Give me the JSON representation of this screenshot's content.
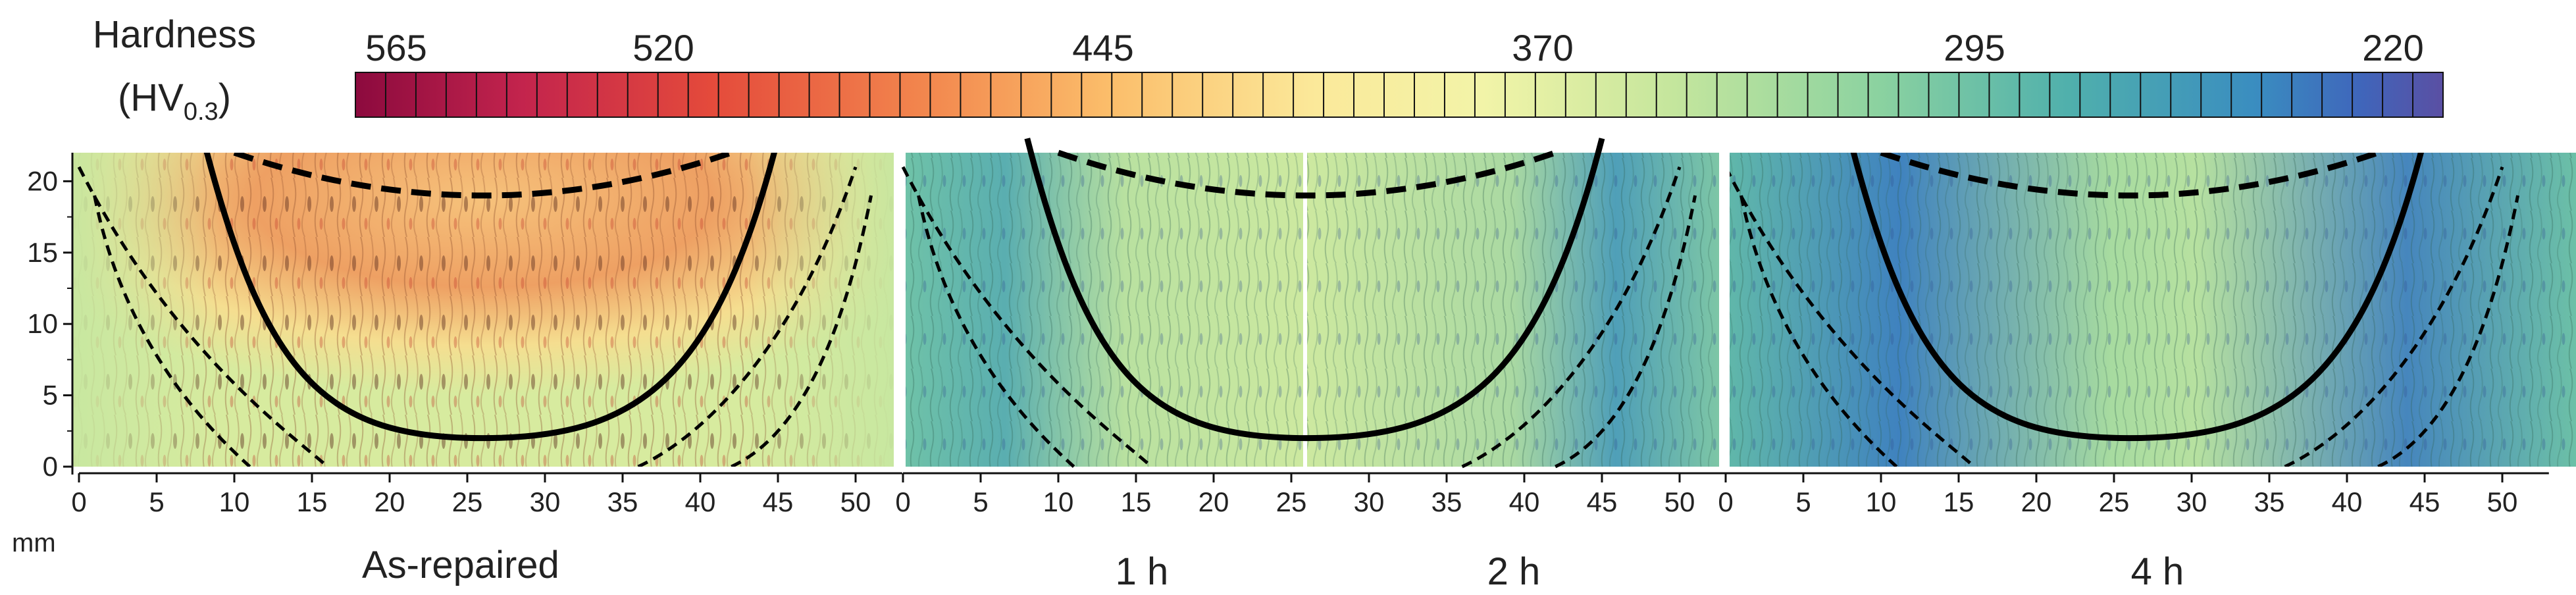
{
  "colorbar": {
    "title_line1": "Hardness",
    "title_line2_main": "(HV",
    "title_line2_sub": "0.3",
    "title_line2_end": ")",
    "tick_labels": [
      "565",
      "520",
      "445",
      "370",
      "295",
      "220"
    ],
    "tick_values": [
      565,
      520,
      445,
      370,
      295,
      220
    ],
    "range": [
      565,
      220
    ],
    "num_bands": 69,
    "colors": [
      "#8c0a3e",
      "#c3244d",
      "#e44a3b",
      "#f2854d",
      "#fbbd6a",
      "#fbe99a",
      "#f2f4a8",
      "#c5e69d",
      "#8bd2a0",
      "#50b0ac",
      "#3a8dc0",
      "#3f66bb",
      "#5a4fa3"
    ]
  },
  "chart_data": [
    {
      "type": "heatmap",
      "caption": "As-repaired",
      "xlabel": "mm",
      "xticks": [
        0,
        5,
        10,
        15,
        20,
        25,
        30,
        35,
        40,
        45,
        50
      ],
      "yticks": [
        0,
        5,
        10,
        15,
        20
      ],
      "xlim": [
        0,
        53
      ],
      "ylim": [
        0,
        22
      ],
      "hardness_fusion_zone_approx": [
        420,
        480
      ],
      "hardness_background_approx": [
        330,
        380
      ]
    },
    {
      "type": "heatmap",
      "caption": "1 h",
      "xticks": [
        0,
        5,
        10,
        15,
        20,
        25
      ],
      "xlim": [
        0,
        26.5
      ],
      "ylim": [
        0,
        22
      ],
      "hardness_range_approx": [
        270,
        360
      ]
    },
    {
      "type": "heatmap",
      "caption": "2 h",
      "xticks": [
        30,
        35,
        40,
        45,
        50
      ],
      "xlim": [
        26.5,
        53
      ],
      "ylim": [
        0,
        22
      ],
      "hardness_range_approx": [
        260,
        360
      ]
    },
    {
      "type": "heatmap",
      "caption": "4 h",
      "xticks": [
        0,
        5,
        10,
        15,
        20,
        25,
        30,
        35,
        40,
        45,
        50
      ],
      "xlim": [
        0,
        53
      ],
      "ylim": [
        0,
        22
      ],
      "hardness_range_approx": [
        240,
        340
      ]
    }
  ],
  "boundaries": {
    "fusion_line_solid": {
      "x_center": 26,
      "y_bottom": 2,
      "x_at_top_left": 8,
      "x_at_top_right": 45,
      "y_top": 22
    },
    "top_dashed": {
      "x_left": 10,
      "x_right": 42,
      "y_min": 19,
      "y_top": 22
    },
    "haz_inner_dashed": {
      "x_left": 16,
      "x_right": 36,
      "y": 2
    },
    "haz_outer_dashed": {
      "x_left": 11,
      "x_right": 42,
      "y": 2,
      "top_left": 1,
      "top_right": 51
    }
  }
}
